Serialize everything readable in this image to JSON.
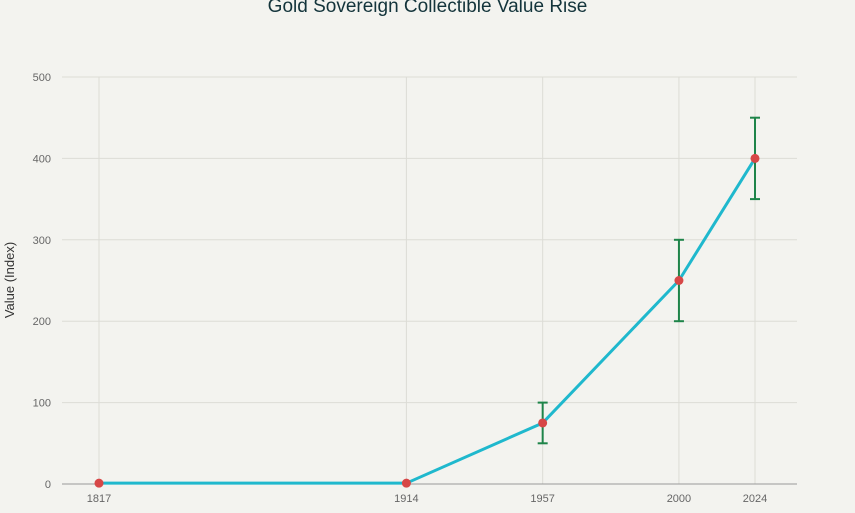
{
  "chart_data": {
    "type": "line",
    "title": "Gold Sovereign Collectible Value Rise",
    "xlabel": "",
    "ylabel": "Value (Index)",
    "x": [
      1817,
      1914,
      1957,
      2000,
      2024
    ],
    "x_tick_labels": [
      "1817",
      "1914",
      "1957",
      "2000",
      "2024"
    ],
    "series": [
      {
        "name": "Value",
        "values": [
          1,
          1,
          75,
          250,
          400
        ],
        "error_low": [
          null,
          null,
          50,
          200,
          350
        ],
        "error_high": [
          null,
          null,
          100,
          300,
          450
        ]
      }
    ],
    "ylim": [
      0,
      500
    ],
    "y_ticks": [
      0,
      100,
      200,
      300,
      400,
      500
    ],
    "grid": true,
    "colors": {
      "line": "#1fb8cd",
      "marker": "#d74747",
      "error": "#1e8449"
    }
  }
}
